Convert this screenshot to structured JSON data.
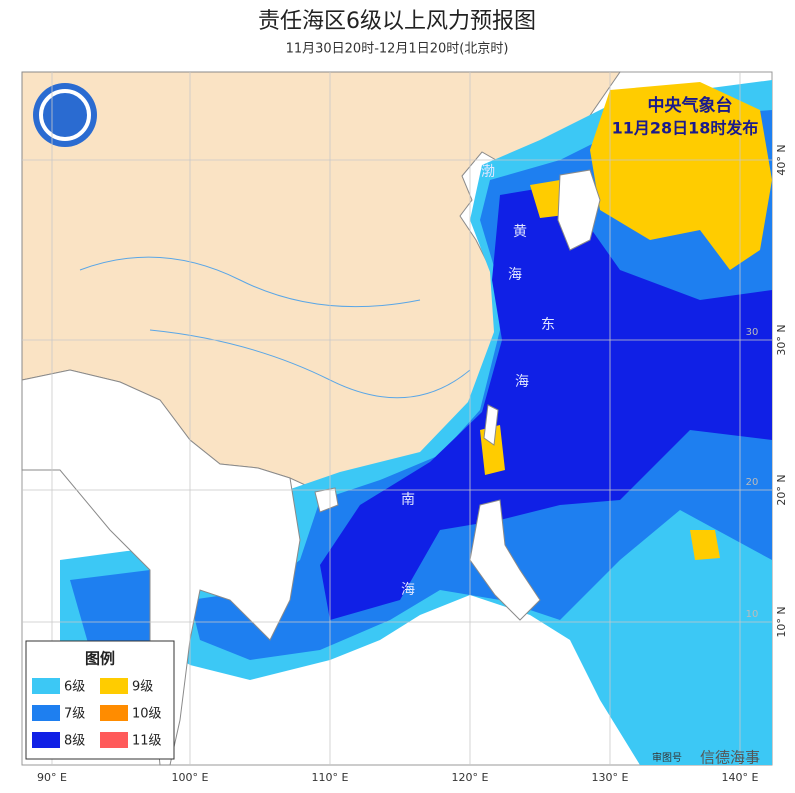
{
  "header": {
    "title": "责任海区6级以上风力预报图",
    "subtitle": "11月30日20时-12月1日20时(北京时)"
  },
  "issuer": {
    "name": "中央气象台",
    "time": "11月28日18时发布"
  },
  "legend": {
    "title": "图例",
    "items": [
      {
        "label": "6级",
        "color": "#3cc8f5"
      },
      {
        "label": "9级",
        "color": "#ffcc00"
      },
      {
        "label": "7级",
        "color": "#1e7ff0"
      },
      {
        "label": "10级",
        "color": "#ff8c00"
      },
      {
        "label": "8级",
        "color": "#1020e6"
      },
      {
        "label": "11级",
        "color": "#ff5a5a"
      }
    ]
  },
  "sea_labels": [
    "渤",
    "黄",
    "海",
    "东",
    "海",
    "南",
    "海"
  ],
  "lon_labels": [
    "90° E",
    "100° E",
    "110° E",
    "120° E",
    "130° E",
    "140° E"
  ],
  "lat_labels": [
    "40° N",
    "30° N",
    "20° N",
    "10° N"
  ],
  "inner_lat_labels": [
    "30",
    "20",
    "10"
  ],
  "map_note": "审图号",
  "watermark": "信德海事"
}
